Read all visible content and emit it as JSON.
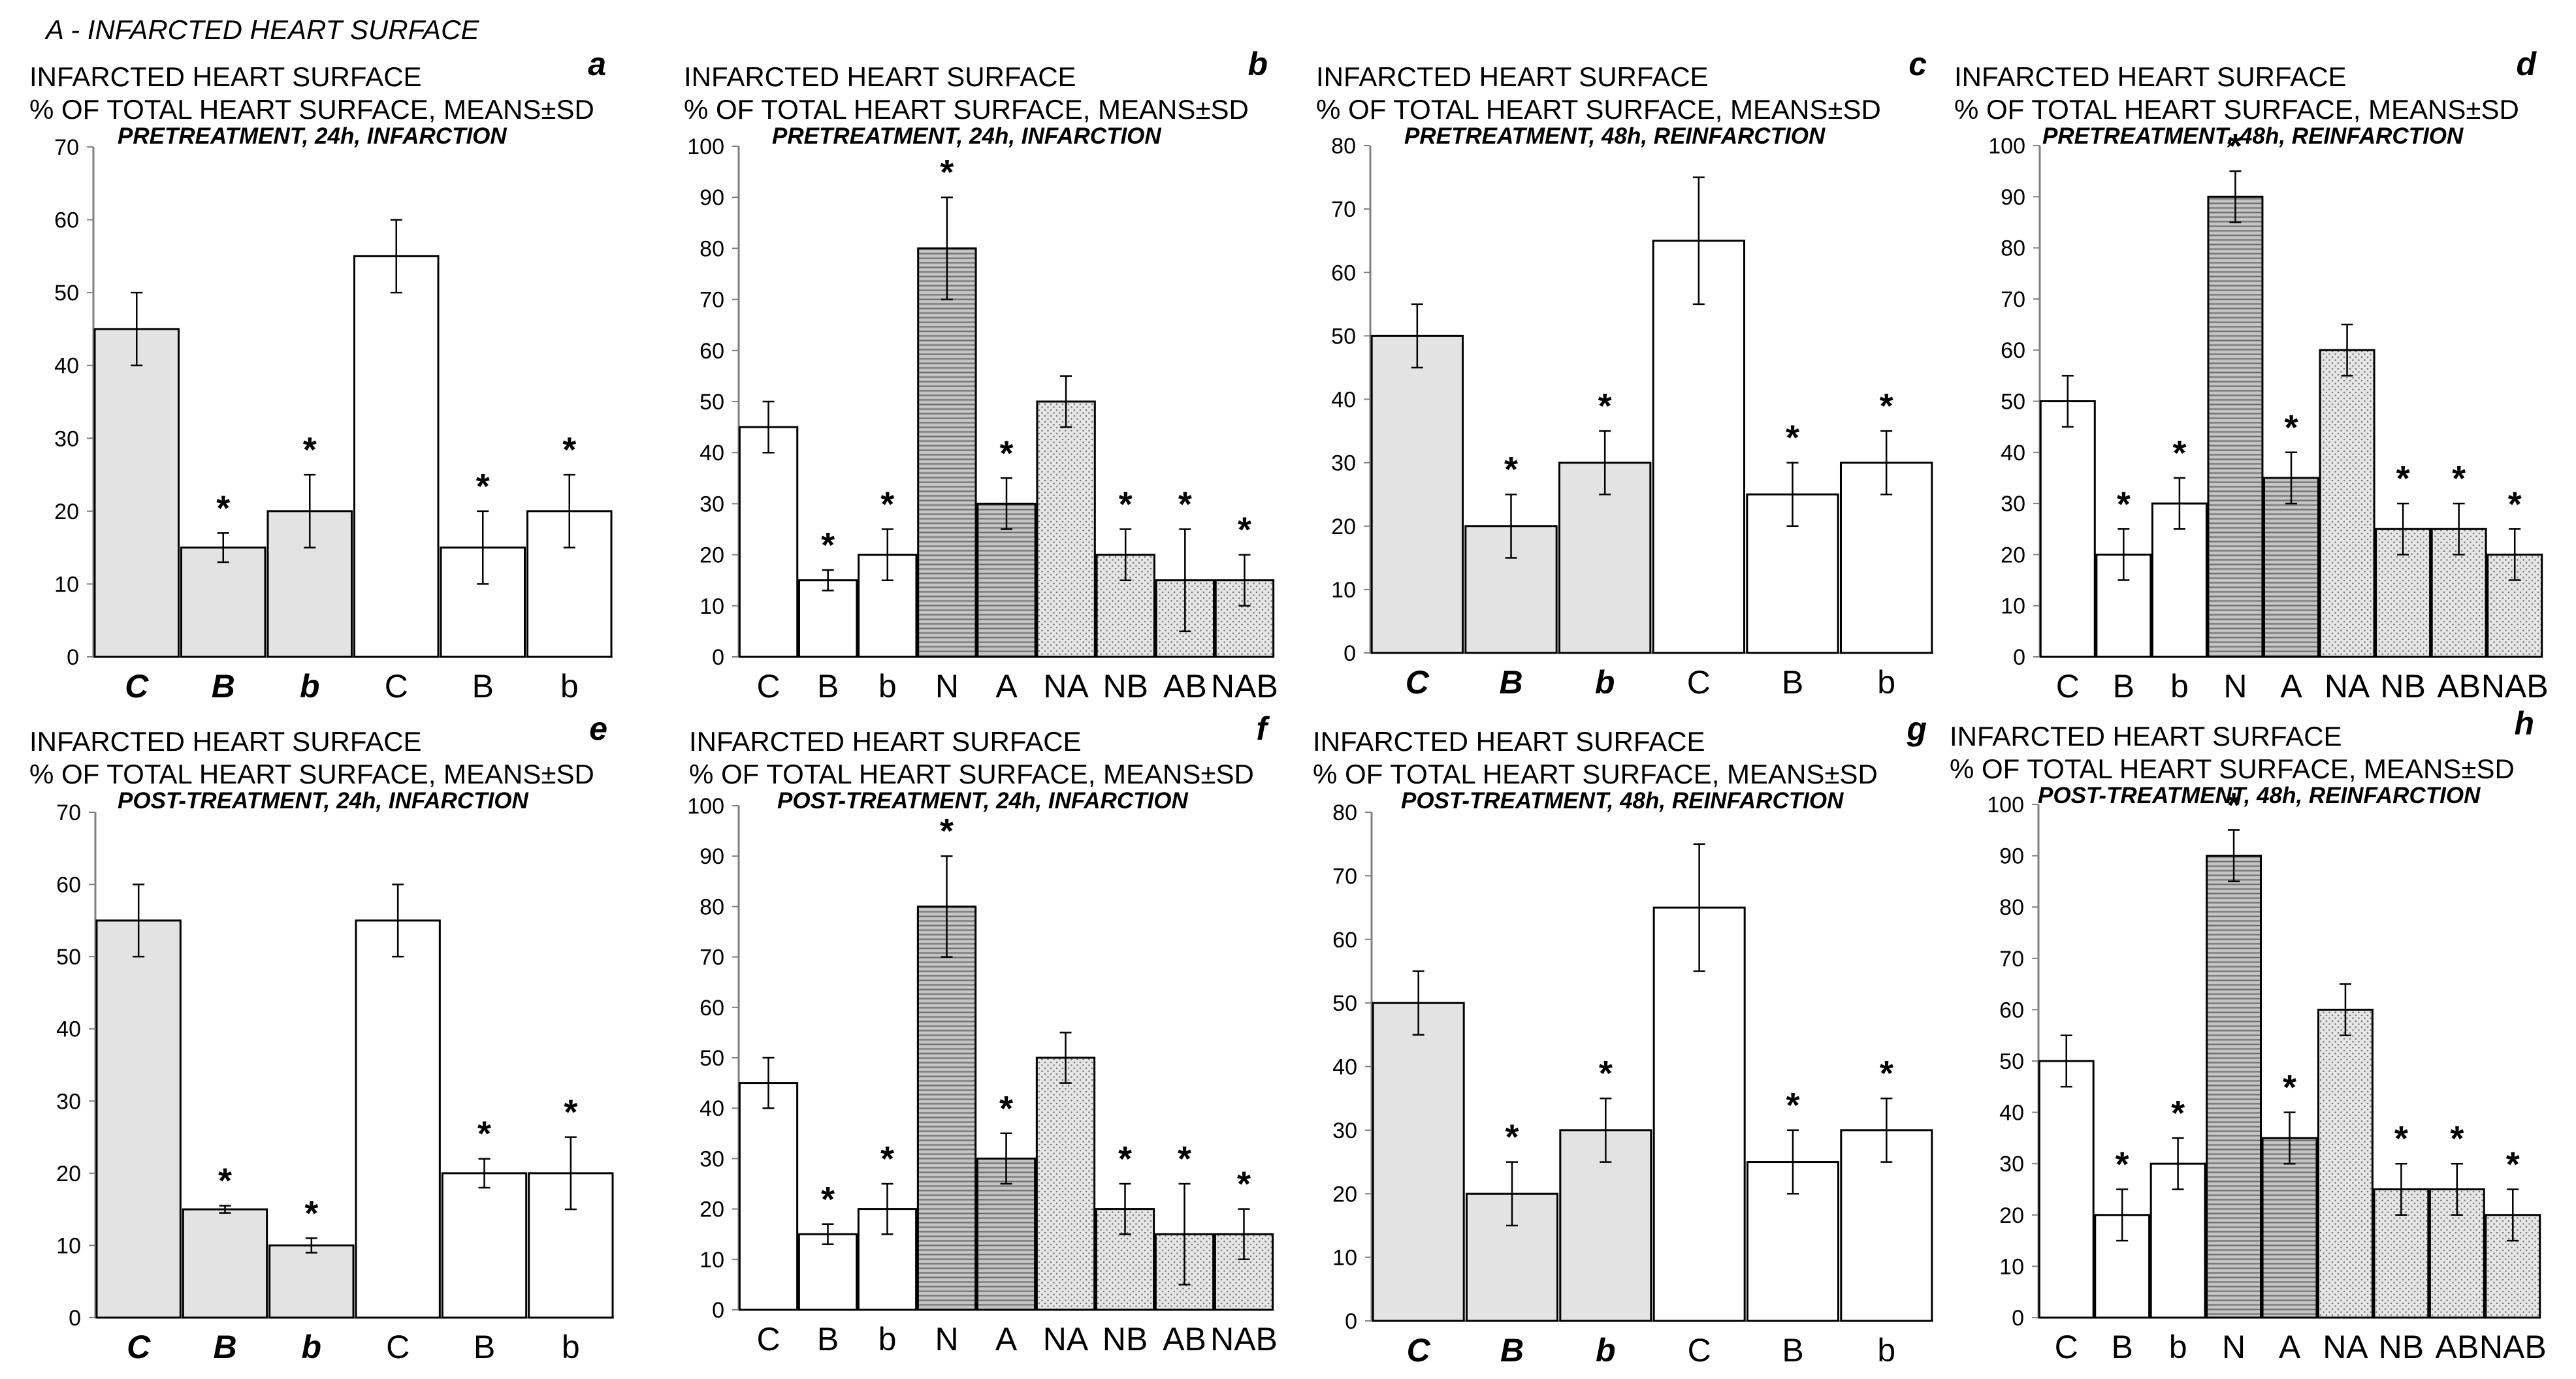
{
  "page": {
    "title": "A - INFARCTED HEART SURFACE"
  },
  "styles": {
    "fills": {
      "gray": "#e3e3e3",
      "white": "#ffffff",
      "hatch": "#b9b9b9",
      "dots": "#d0d0d0"
    },
    "stroke": "#000000",
    "axis": "#7f7f7f"
  },
  "chart_data": [
    {
      "panel": "a",
      "type": "bar",
      "title": "INFARCTED HEART SURFACE",
      "subtitle": "% OF TOTAL HEART SURFACE, MEANS±SD",
      "note": "PRETREATMENT, 24h, INFARCTION",
      "ylim": [
        0,
        70
      ],
      "ystep": 10,
      "categories": [
        "C",
        "B",
        "b",
        "C",
        "B",
        "b"
      ],
      "italic": [
        true,
        true,
        true,
        false,
        false,
        false
      ],
      "values": [
        45,
        15,
        20,
        55,
        15,
        20
      ],
      "errors": [
        5,
        2,
        5,
        5,
        5,
        5
      ],
      "significant": [
        false,
        true,
        true,
        false,
        true,
        true
      ],
      "fills": [
        "gray",
        "gray",
        "gray",
        "white",
        "white",
        "white"
      ]
    },
    {
      "panel": "b",
      "type": "bar",
      "title": "INFARCTED HEART SURFACE",
      "subtitle": "% OF TOTAL HEART SURFACE, MEANS±SD",
      "note": "PRETREATMENT, 24h, INFARCTION",
      "ylim": [
        0,
        100
      ],
      "ystep": 10,
      "categories": [
        "C",
        "B",
        "b",
        "N",
        "A",
        "NA",
        "NB",
        "AB",
        "NAB"
      ],
      "italic": [
        false,
        false,
        false,
        false,
        false,
        false,
        false,
        false,
        false
      ],
      "values": [
        45,
        15,
        20,
        80,
        30,
        50,
        20,
        15,
        15
      ],
      "errors": [
        5,
        2,
        5,
        10,
        5,
        5,
        5,
        10,
        5
      ],
      "significant": [
        false,
        true,
        true,
        true,
        true,
        false,
        true,
        true,
        true
      ],
      "fills": [
        "white",
        "white",
        "white",
        "hatch",
        "hatch",
        "dots",
        "dots",
        "dots",
        "dots"
      ]
    },
    {
      "panel": "c",
      "type": "bar",
      "title": "INFARCTED HEART SURFACE",
      "subtitle": "% OF TOTAL HEART SURFACE, MEANS±SD",
      "note": "PRETREATMENT, 48h, REINFARCTION",
      "ylim": [
        0,
        80
      ],
      "ystep": 10,
      "categories": [
        "C",
        "B",
        "b",
        "C",
        "B",
        "b"
      ],
      "italic": [
        true,
        true,
        true,
        false,
        false,
        false
      ],
      "values": [
        50,
        20,
        30,
        65,
        25,
        30
      ],
      "errors": [
        5,
        5,
        5,
        10,
        5,
        5
      ],
      "significant": [
        false,
        true,
        true,
        false,
        true,
        true
      ],
      "fills": [
        "gray",
        "gray",
        "gray",
        "white",
        "white",
        "white"
      ]
    },
    {
      "panel": "d",
      "type": "bar",
      "title": "INFARCTED HEART SURFACE",
      "subtitle": "% OF TOTAL HEART SURFACE, MEANS±SD",
      "note": "PRETREATMENT, 48h, REINFARCTION",
      "ylim": [
        0,
        100
      ],
      "ystep": 10,
      "categories": [
        "C",
        "B",
        "b",
        "N",
        "A",
        "NA",
        "NB",
        "AB",
        "NAB"
      ],
      "italic": [
        false,
        false,
        false,
        false,
        false,
        false,
        false,
        false,
        false
      ],
      "values": [
        50,
        20,
        30,
        90,
        35,
        60,
        25,
        25,
        20
      ],
      "errors": [
        5,
        5,
        5,
        5,
        5,
        5,
        5,
        5,
        5
      ],
      "significant": [
        false,
        true,
        true,
        true,
        true,
        false,
        true,
        true,
        true
      ],
      "fills": [
        "white",
        "white",
        "white",
        "hatch",
        "hatch",
        "dots",
        "dots",
        "dots",
        "dots"
      ]
    },
    {
      "panel": "e",
      "type": "bar",
      "title": "INFARCTED HEART SURFACE",
      "subtitle": "% OF TOTAL HEART SURFACE, MEANS±SD",
      "note": "POST-TREATMENT, 24h, INFARCTION",
      "ylim": [
        0,
        70
      ],
      "ystep": 10,
      "categories": [
        "C",
        "B",
        "b",
        "C",
        "B",
        "b"
      ],
      "italic": [
        true,
        true,
        true,
        false,
        false,
        false
      ],
      "values": [
        55,
        15,
        10,
        55,
        20,
        20
      ],
      "errors": [
        5,
        0.5,
        1,
        5,
        2,
        5
      ],
      "significant": [
        false,
        true,
        true,
        false,
        true,
        true
      ],
      "fills": [
        "gray",
        "gray",
        "gray",
        "white",
        "white",
        "white"
      ]
    },
    {
      "panel": "f",
      "type": "bar",
      "title": "INFARCTED HEART SURFACE",
      "subtitle": "% OF TOTAL HEART SURFACE, MEANS±SD",
      "note": "POST-TREATMENT, 24h, INFARCTION",
      "ylim": [
        0,
        100
      ],
      "ystep": 10,
      "categories": [
        "C",
        "B",
        "b",
        "N",
        "A",
        "NA",
        "NB",
        "AB",
        "NAB"
      ],
      "italic": [
        false,
        false,
        false,
        false,
        false,
        false,
        false,
        false,
        false
      ],
      "values": [
        45,
        15,
        20,
        80,
        30,
        50,
        20,
        15,
        15
      ],
      "errors": [
        5,
        2,
        5,
        10,
        5,
        5,
        5,
        10,
        5
      ],
      "significant": [
        false,
        true,
        true,
        true,
        true,
        false,
        true,
        true,
        true
      ],
      "fills": [
        "white",
        "white",
        "white",
        "hatch",
        "hatch",
        "dots",
        "dots",
        "dots",
        "dots"
      ]
    },
    {
      "panel": "g",
      "type": "bar",
      "title": "INFARCTED HEART SURFACE",
      "subtitle": "% OF TOTAL HEART SURFACE, MEANS±SD",
      "note": "POST-TREATMENT, 48h, REINFARCTION",
      "ylim": [
        0,
        80
      ],
      "ystep": 10,
      "categories": [
        "C",
        "B",
        "b",
        "C",
        "B",
        "b"
      ],
      "italic": [
        true,
        true,
        true,
        false,
        false,
        false
      ],
      "values": [
        50,
        20,
        30,
        65,
        25,
        30
      ],
      "errors": [
        5,
        5,
        5,
        10,
        5,
        5
      ],
      "significant": [
        false,
        true,
        true,
        false,
        true,
        true
      ],
      "fills": [
        "gray",
        "gray",
        "gray",
        "white",
        "white",
        "white"
      ]
    },
    {
      "panel": "h",
      "type": "bar",
      "title": "INFARCTED HEART SURFACE",
      "subtitle": "% OF TOTAL HEART SURFACE, MEANS±SD",
      "note": "POST-TREATMENT, 48h, REINFARCTION",
      "ylim": [
        0,
        100
      ],
      "ystep": 10,
      "categories": [
        "C",
        "B",
        "b",
        "N",
        "A",
        "NA",
        "NB",
        "AB",
        "NAB"
      ],
      "italic": [
        false,
        false,
        false,
        false,
        false,
        false,
        false,
        false,
        false
      ],
      "values": [
        50,
        20,
        30,
        90,
        35,
        60,
        25,
        25,
        20
      ],
      "errors": [
        5,
        5,
        5,
        5,
        5,
        5,
        5,
        5,
        5
      ],
      "significant": [
        false,
        true,
        true,
        true,
        true,
        false,
        true,
        true,
        true
      ],
      "fills": [
        "white",
        "white",
        "white",
        "hatch",
        "hatch",
        "dots",
        "dots",
        "dots",
        "dots"
      ]
    }
  ]
}
